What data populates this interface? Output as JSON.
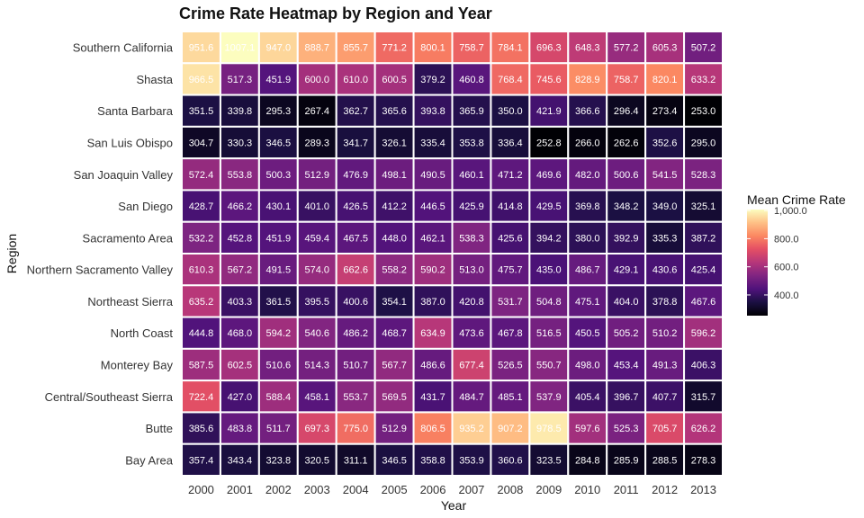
{
  "chart_data": {
    "type": "heatmap",
    "title": "Crime Rate Heatmap by Region and Year",
    "xlabel": "Year",
    "ylabel": "Region",
    "x": [
      "2000",
      "2001",
      "2002",
      "2003",
      "2004",
      "2005",
      "2006",
      "2007",
      "2008",
      "2009",
      "2010",
      "2011",
      "2012",
      "2013"
    ],
    "y": [
      "Southern California",
      "Shasta",
      "Santa Barbara",
      "San Luis Obispo",
      "San Joaquin Valley",
      "San Diego",
      "Sacramento Area",
      "Northern Sacramento Valley",
      "Northeast Sierra",
      "North Coast",
      "Monterey Bay",
      "Central/Southeast Sierra",
      "Butte",
      "Bay Area"
    ],
    "values": [
      [
        951.6,
        1007.1,
        947.0,
        888.7,
        855.7,
        771.2,
        800.1,
        758.7,
        784.1,
        696.3,
        648.3,
        577.2,
        605.3,
        507.2
      ],
      [
        966.5,
        517.3,
        451.9,
        600.0,
        610.0,
        600.5,
        379.2,
        460.8,
        768.4,
        745.6,
        828.9,
        758.7,
        820.1,
        633.2
      ],
      [
        351.5,
        339.8,
        295.3,
        267.4,
        362.7,
        365.6,
        393.8,
        365.9,
        350.0,
        421.9,
        366.6,
        296.4,
        273.4,
        253.0
      ],
      [
        304.7,
        330.3,
        346.5,
        289.3,
        341.7,
        326.1,
        335.4,
        353.8,
        336.4,
        252.8,
        266.0,
        262.6,
        352.6,
        295.0
      ],
      [
        572.4,
        553.8,
        500.3,
        512.9,
        476.9,
        498.1,
        490.5,
        460.1,
        471.2,
        469.6,
        482.0,
        500.6,
        541.5,
        528.3
      ],
      [
        428.7,
        466.2,
        430.1,
        401.0,
        426.5,
        412.2,
        446.5,
        425.9,
        414.8,
        429.5,
        369.8,
        348.2,
        349.0,
        325.1
      ],
      [
        532.2,
        452.8,
        451.9,
        459.4,
        467.5,
        448.0,
        462.1,
        538.3,
        425.6,
        394.2,
        380.0,
        392.9,
        335.3,
        387.2
      ],
      [
        610.3,
        567.2,
        491.5,
        574.0,
        662.6,
        558.2,
        590.2,
        513.0,
        475.7,
        435.0,
        486.7,
        429.1,
        430.6,
        425.4
      ],
      [
        635.2,
        403.3,
        361.5,
        395.5,
        400.6,
        354.1,
        387.0,
        420.8,
        531.7,
        504.8,
        475.1,
        404.0,
        378.8,
        467.6
      ],
      [
        444.8,
        468.0,
        594.2,
        540.6,
        486.2,
        468.7,
        634.9,
        473.6,
        467.8,
        516.5,
        450.5,
        505.2,
        510.2,
        596.2
      ],
      [
        587.5,
        602.5,
        510.6,
        514.3,
        510.7,
        567.7,
        486.6,
        677.4,
        526.5,
        550.7,
        498.0,
        453.4,
        491.3,
        406.3
      ],
      [
        722.4,
        427.0,
        588.4,
        458.1,
        553.7,
        569.5,
        431.7,
        484.7,
        485.1,
        537.9,
        405.4,
        396.7,
        407.7,
        315.7
      ],
      [
        385.6,
        483.8,
        511.7,
        697.3,
        775.0,
        512.9,
        806.5,
        935.2,
        907.2,
        978.5,
        597.6,
        525.3,
        705.7,
        626.2
      ],
      [
        357.4,
        343.4,
        323.8,
        320.5,
        311.1,
        346.5,
        358.8,
        353.9,
        360.6,
        323.5,
        284.8,
        285.9,
        288.5,
        278.3
      ]
    ],
    "value_range": [
      252.8,
      1007.1
    ],
    "colorscale": "magma",
    "legend": {
      "title": "Mean Crime Rate",
      "ticks": [
        {
          "value": 1000,
          "label": "1,000.0"
        },
        {
          "value": 800,
          "label": "800.0"
        },
        {
          "value": 600,
          "label": "600.0"
        },
        {
          "value": 400,
          "label": "400.0"
        }
      ],
      "placement": "right"
    },
    "grid": false,
    "cell_border_color": "#ffffff"
  }
}
